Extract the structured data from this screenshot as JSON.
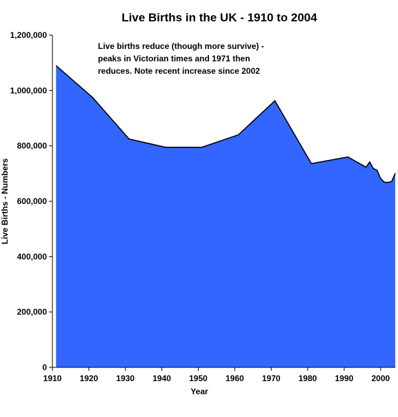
{
  "chart_data": {
    "type": "area",
    "title": "Live Births in the UK - 1910 to 2004",
    "xlabel": "Year",
    "ylabel": "Live Births - Numbers",
    "xlim": [
      1910,
      2004
    ],
    "ylim": [
      0,
      1200000
    ],
    "x_ticks": [
      1910,
      1920,
      1930,
      1940,
      1950,
      1960,
      1970,
      1980,
      1990,
      2000
    ],
    "y_ticks": [
      0,
      200000,
      400000,
      600000,
      800000,
      1000000,
      1200000
    ],
    "x_tick_labels": [
      "1910",
      "1920",
      "1930",
      "1940",
      "1950",
      "1960",
      "1970",
      "1980",
      "1990",
      "2000"
    ],
    "y_tick_labels": [
      "0",
      "200,000",
      "400,000",
      "600,000",
      "800,000",
      "1,000,000",
      "1,200,000"
    ],
    "grid": false,
    "legend": "none",
    "series": [
      {
        "color": "#3366ff",
        "x": [
          1911,
          1921,
          1931,
          1941,
          1951,
          1961,
          1971,
          1981,
          1991,
          1996,
          1997,
          1998,
          1999,
          2000,
          2001,
          2002,
          2003,
          2004
        ],
        "y": [
          1090000,
          975000,
          825000,
          795000,
          795000,
          840000,
          963000,
          736000,
          760000,
          723000,
          742000,
          718000,
          712000,
          682000,
          669000,
          668000,
          671000,
          701000
        ]
      }
    ],
    "annotation": {
      "lines": [
        "Live births reduce (though more survive) -",
        "peaks in Victorian times and 1971 then",
        "reduces. Note recent increase since 2002"
      ]
    }
  }
}
